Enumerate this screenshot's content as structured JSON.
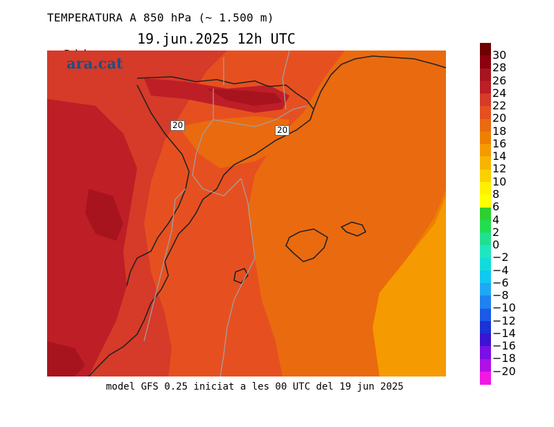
{
  "header": {
    "title": "TEMPERATURA A 850 hPa (~ 1.500 m)",
    "day": "Dijous",
    "date": "19.jun.2025 12h UTC"
  },
  "map": {
    "logo": "ara.cat",
    "contour_labels": [
      "20",
      "20"
    ]
  },
  "footer": {
    "text": "model GFS 0.25 iniciat a les 00 UTC del 19 jun 2025"
  },
  "legend": {
    "items": [
      {
        "label": "30",
        "color": "#6e0000"
      },
      {
        "label": "28",
        "color": "#8c0010"
      },
      {
        "label": "26",
        "color": "#a8141e"
      },
      {
        "label": "24",
        "color": "#be1e26"
      },
      {
        "label": "22",
        "color": "#d63a28"
      },
      {
        "label": "20",
        "color": "#e65020"
      },
      {
        "label": "18",
        "color": "#ea6a10"
      },
      {
        "label": "16",
        "color": "#ee8000"
      },
      {
        "label": "14",
        "color": "#f59a00"
      },
      {
        "label": "12",
        "color": "#f8b400"
      },
      {
        "label": "10",
        "color": "#fad200"
      },
      {
        "label": "8",
        "color": "#fff000"
      },
      {
        "label": "6",
        "color": "#ffff00"
      },
      {
        "label": "4",
        "color": "#2ed02e"
      },
      {
        "label": "2",
        "color": "#20de50"
      },
      {
        "label": "0",
        "color": "#20e090"
      },
      {
        "label": "−2",
        "color": "#20e6c0"
      },
      {
        "label": "−4",
        "color": "#10dcdc"
      },
      {
        "label": "−6",
        "color": "#10c8f0"
      },
      {
        "label": "−8",
        "color": "#20a8f4"
      },
      {
        "label": "−10",
        "color": "#1e82f0"
      },
      {
        "label": "−12",
        "color": "#1a5ae6"
      },
      {
        "label": "−14",
        "color": "#1a32d6"
      },
      {
        "label": "−16",
        "color": "#3a14d0"
      },
      {
        "label": "−18",
        "color": "#7a10e6"
      },
      {
        "label": "−20",
        "color": "#b010e6"
      },
      {
        "label": "",
        "color": "#f018e6"
      }
    ]
  }
}
